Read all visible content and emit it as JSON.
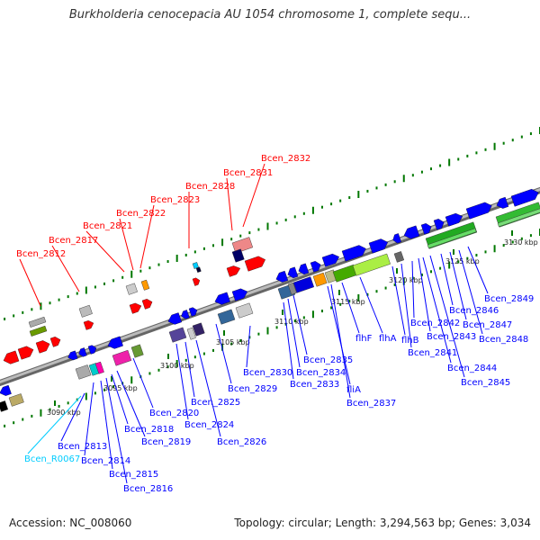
{
  "title": "Burkholderia cenocepacia AU 1054 chromosome 1, complete sequ...",
  "footer": {
    "accession": "Accession: NC_008060",
    "summary": "Topology: circular; Length: 3,294,563 bp; Genes: 3,034"
  },
  "colors": {
    "forward": "#0000ff",
    "reverse": "#ff0000",
    "rna": "#00ccff",
    "scale_tick": "#007700",
    "backbone": "#888888"
  },
  "scale_ticks": [
    "3090 kbp",
    "3095 kbp",
    "3100 kbp",
    "3105 kbp",
    "3110 kbp",
    "3115 kbp",
    "3120 kbp",
    "3125 kbp",
    "3130 kbp"
  ],
  "labels_top": [
    "Bcen_2812",
    "Bcen_2817",
    "Bcen_2821",
    "Bcen_2822",
    "Bcen_2823",
    "Bcen_2828",
    "Bcen_2831",
    "Bcen_2832"
  ],
  "labels_bottom": [
    "Bcen_2813",
    "Bcen_R0067",
    "Bcen_2814",
    "Bcen_2815",
    "Bcen_2816",
    "Bcen_2818",
    "Bcen_2819",
    "Bcen_2820",
    "Bcen_2824",
    "Bcen_2825",
    "Bcen_2826",
    "Bcen_2829",
    "Bcen_2830",
    "Bcen_2833",
    "Bcen_2834",
    "Bcen_2835",
    "fliA",
    "Bcen_2837",
    "flhF",
    "flhA",
    "flhB",
    "Bcen_2841",
    "Bcen_2842",
    "Bcen_2843",
    "Bcen_2844",
    "Bcen_2845",
    "Bcen_2846",
    "Bcen_2847",
    "Bcen_2848",
    "Bcen_2849"
  ]
}
